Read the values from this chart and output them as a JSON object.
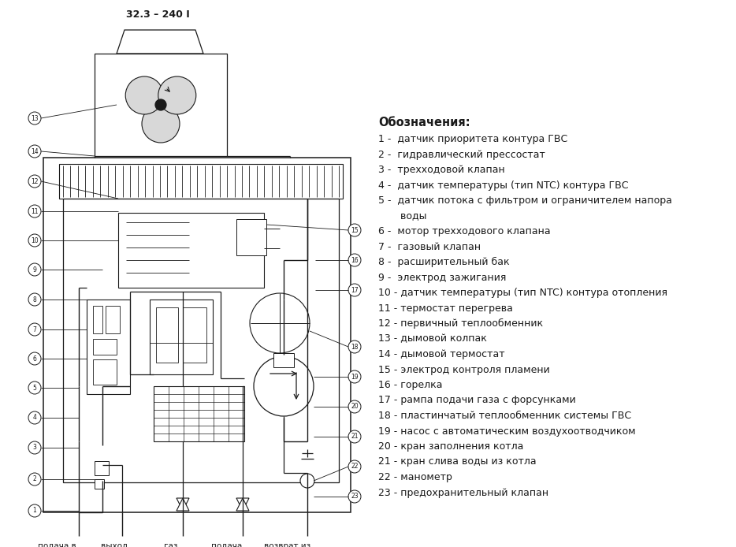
{
  "title": "32.3 – 240 I",
  "bg_color": "#ffffff",
  "diagram_color": "#1a1a1a",
  "legend_title": "Обозначения:",
  "legend_items": [
    [
      "1",
      " -  датчик приоритета контура ГВС"
    ],
    [
      "2",
      " -  гидравлический прессостат"
    ],
    [
      "3",
      " -  трехходовой клапан"
    ],
    [
      "4",
      " -  датчик температуры (тип NTC) контура ГВС"
    ],
    [
      "5",
      " -  датчик потока с фильтром и ограничителем напора"
    ],
    [
      "",
      "       воды"
    ],
    [
      "6",
      " -  мотор трехходового клапана"
    ],
    [
      "7",
      " -  газовый клапан"
    ],
    [
      "8",
      " -  расширительный бак"
    ],
    [
      "9",
      " -  электрод зажигания"
    ],
    [
      "10",
      " - датчик температуры (тип NTC) контура отопления"
    ],
    [
      "11",
      " - термостат перегрева"
    ],
    [
      "12",
      " - первичный теплообменник"
    ],
    [
      "13",
      " - дымовой колпак"
    ],
    [
      "14",
      " - дымовой термостат"
    ],
    [
      "15",
      " - электрод контроля пламени"
    ],
    [
      "16",
      " - горелка"
    ],
    [
      "17",
      " - рампа подачи газа с форсунками"
    ],
    [
      "18",
      " - пластинчатый теплообменник системы ГВС"
    ],
    [
      "19",
      " - насос с автоматическим воздухоотводчиком"
    ],
    [
      "20",
      " - кран заполнения котла"
    ],
    [
      "21",
      " - кран слива воды из котла"
    ],
    [
      "22",
      " - манометр"
    ],
    [
      "23",
      " - предохранительный клапан"
    ]
  ],
  "bottom_labels": [
    [
      "подача в\nсистему\nотопления",
      0.078
    ],
    [
      "выход\nгорячей\nводы",
      0.155
    ],
    [
      "газ",
      0.232
    ],
    [
      "подача\nхолодной\nводы",
      0.308
    ],
    [
      "возврат из\nсистемы\nотопления",
      0.39
    ]
  ]
}
